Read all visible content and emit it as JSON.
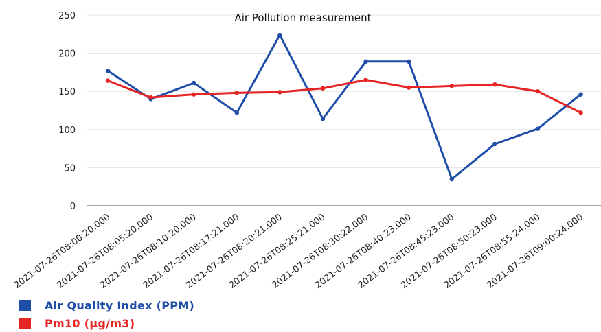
{
  "chart_data": {
    "type": "line",
    "title": "Air Pollution measurement",
    "xlabel": "",
    "ylabel": "",
    "categories": [
      "2021-07-26T08:00:20.000",
      "2021-07-26T08:05:20.000",
      "2021-07-26T08:10:20.000",
      "2021-07-26T08:17:21.000",
      "2021-07-26T08:20:21.000",
      "2021-07-26T08:25:21.000",
      "2021-07-26T08:30:22.000",
      "2021-07-26T08:40:23.000",
      "2021-07-26T08:45:23.000",
      "2021-07-26T08:50:23.000",
      "2021-07-26T08:55:24.000",
      "2021-07-26T09:00:24.000"
    ],
    "series": [
      {
        "name": "Air Quality Index (PPM)",
        "color": "#1f4ea8",
        "values": [
          177,
          140,
          161,
          122,
          224,
          114,
          189,
          189,
          35,
          81,
          101,
          146
        ]
      },
      {
        "name": "Pm10 (μg/m3)",
        "color": "#e52424",
        "values": [
          164,
          142,
          146,
          148,
          149,
          154,
          165,
          155,
          157,
          159,
          150,
          122
        ]
      }
    ],
    "ylim": [
      0,
      250
    ],
    "yticks": [
      "0",
      "50",
      "100",
      "150",
      "200",
      "250"
    ],
    "grid": true,
    "legend_position": "bottom-left"
  }
}
